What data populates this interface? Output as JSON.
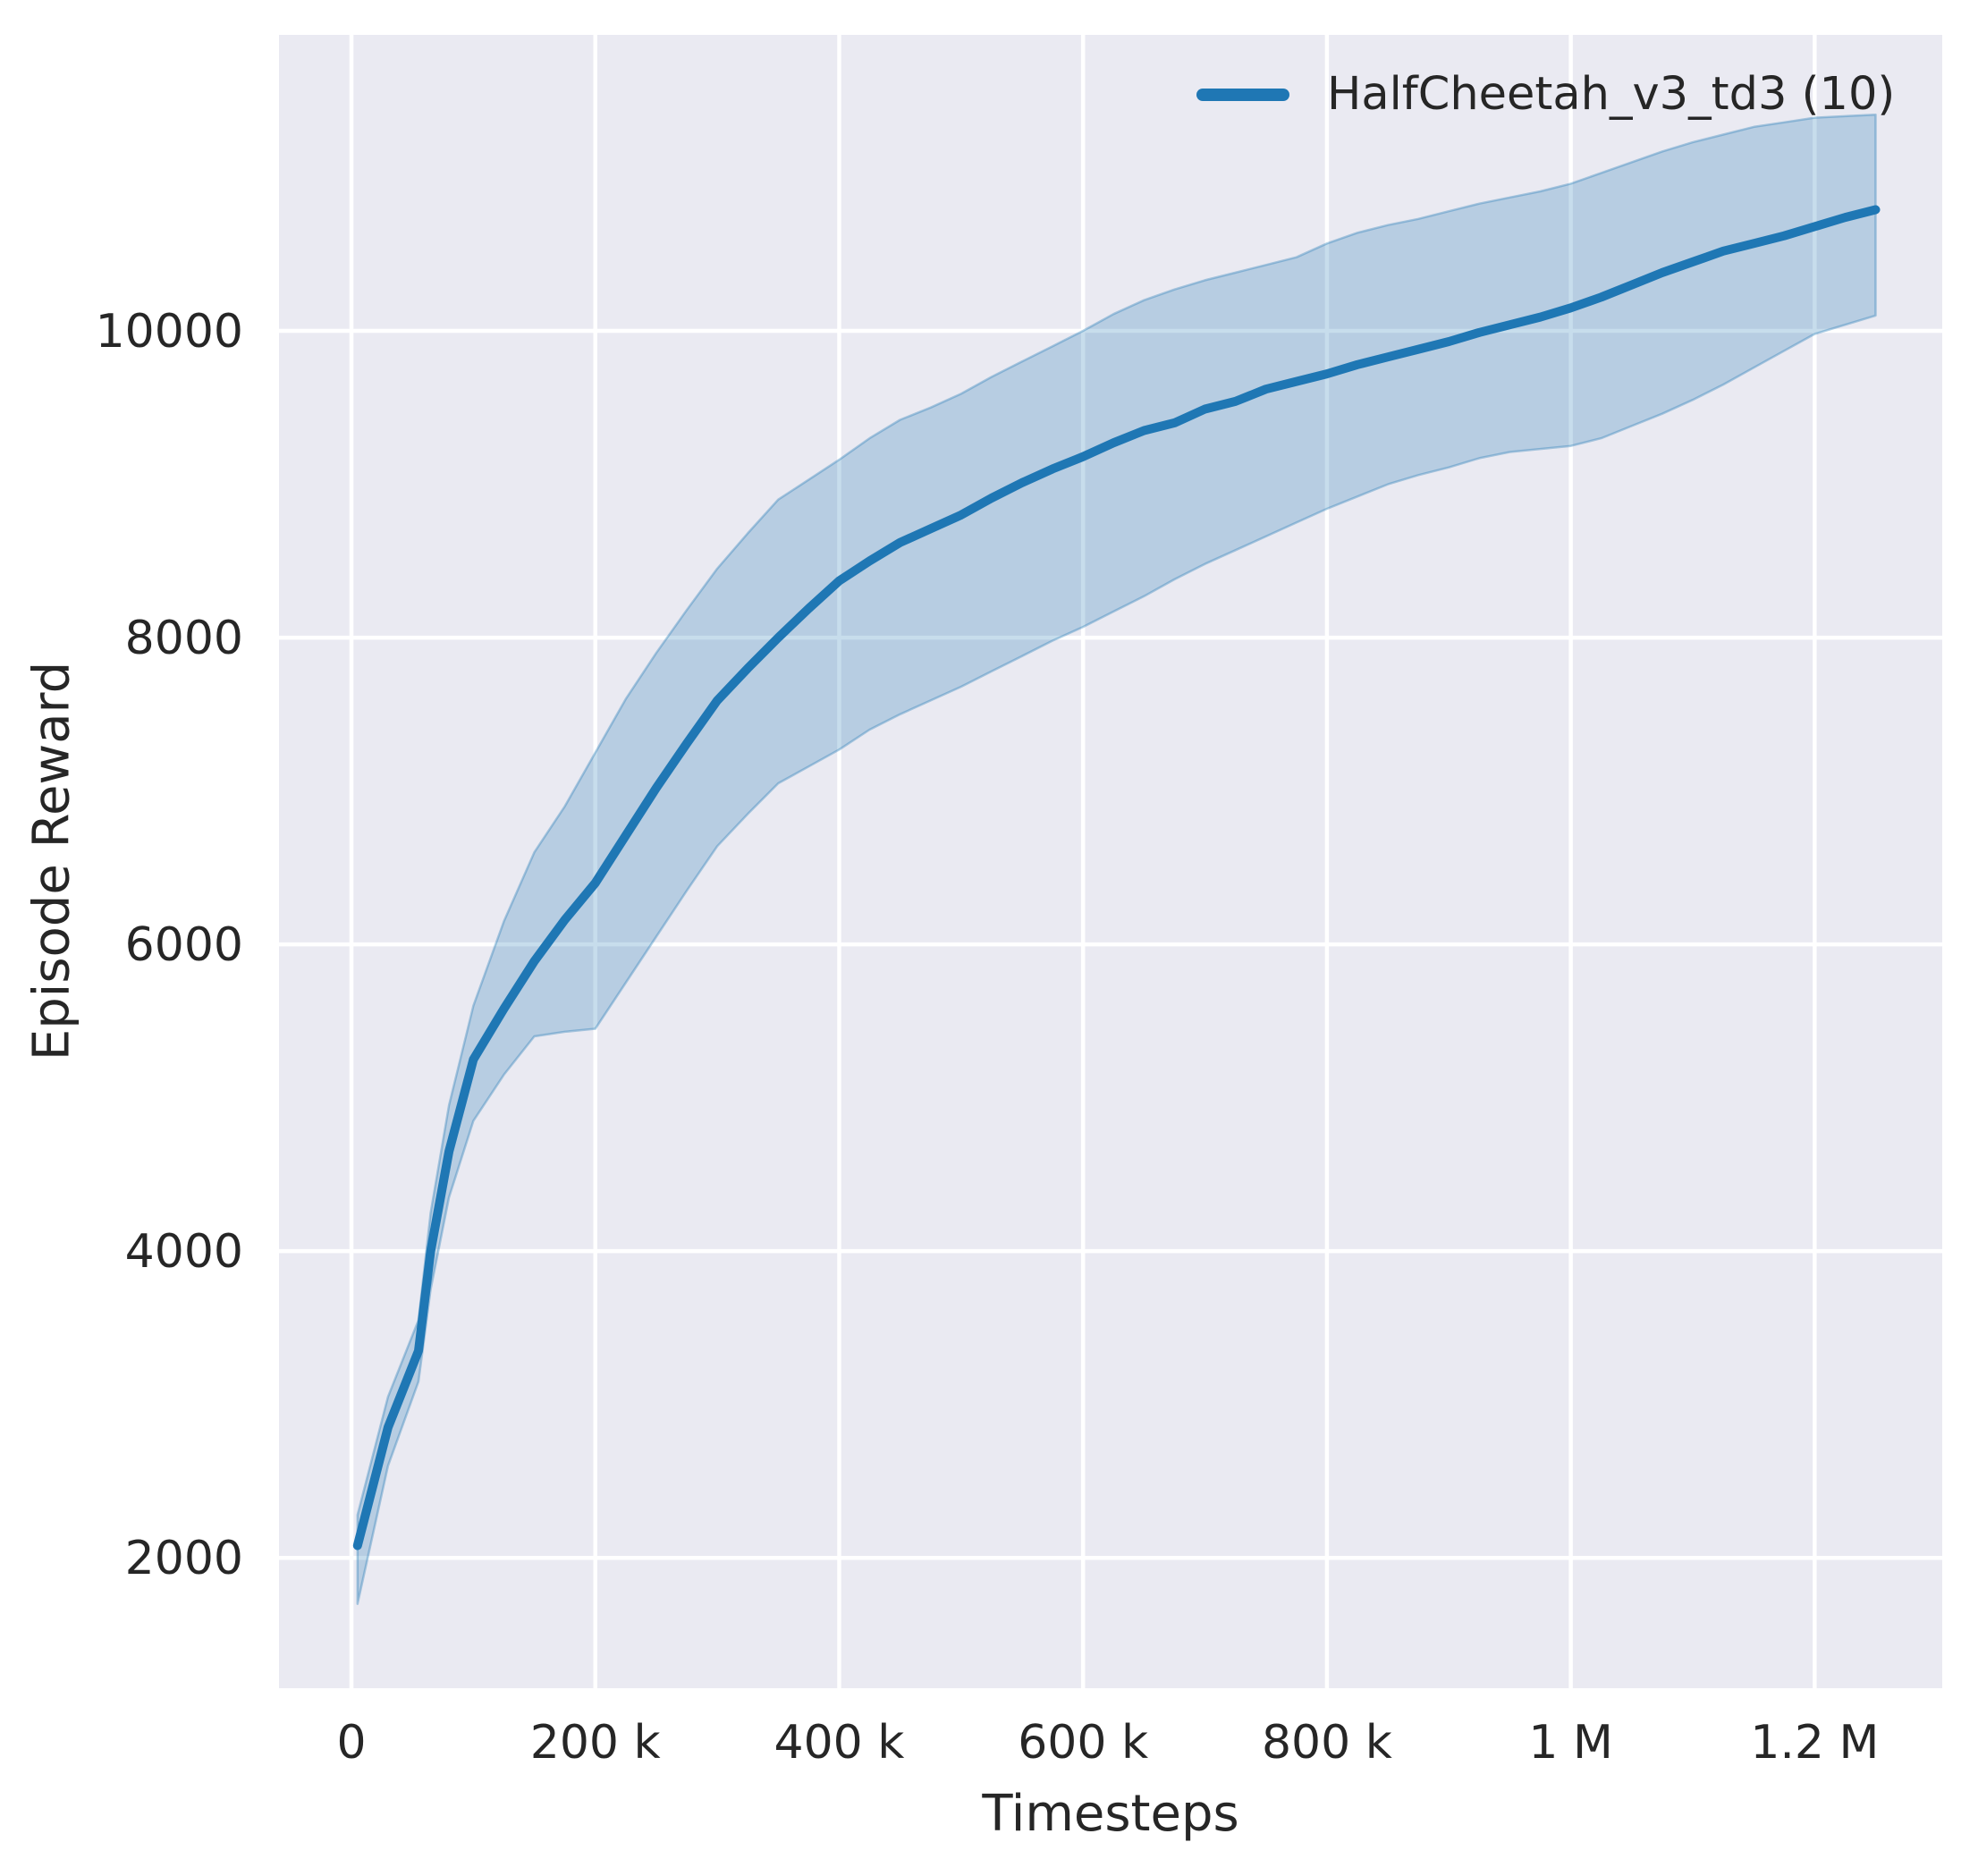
{
  "chart_data": {
    "type": "line",
    "title": "",
    "xlabel": "Timesteps",
    "ylabel": "Episode Reward",
    "grid": true,
    "legend_position": "upper right",
    "plot_bg_color": "#eaeaf2",
    "grid_color": "#ffffff",
    "text_color": "#262626",
    "xlim": [
      -59400,
      1304600
    ],
    "ylim": [
      1150,
      11930
    ],
    "x_ticks": [
      {
        "value": 0,
        "label": "0"
      },
      {
        "value": 200000,
        "label": "200 k"
      },
      {
        "value": 400000,
        "label": "400 k"
      },
      {
        "value": 600000,
        "label": "600 k"
      },
      {
        "value": 800000,
        "label": "800 k"
      },
      {
        "value": 1000000,
        "label": "1 M"
      },
      {
        "value": 1200000,
        "label": "1.2 M"
      }
    ],
    "y_ticks": [
      {
        "value": 2000,
        "label": "2000"
      },
      {
        "value": 4000,
        "label": "4000"
      },
      {
        "value": 6000,
        "label": "6000"
      },
      {
        "value": 8000,
        "label": "8000"
      },
      {
        "value": 10000,
        "label": "10000"
      }
    ],
    "legend": [
      {
        "label": "HalfCheetah_v3_td3 (10)",
        "color": "#1f77b4"
      }
    ],
    "series": [
      {
        "name": "HalfCheetah_v3_td3 (10)",
        "color": "#1f77b4",
        "band_alpha": 0.25,
        "x": [
          5000,
          30000,
          55000,
          65000,
          80000,
          100000,
          125000,
          150000,
          175000,
          200000,
          225000,
          250000,
          275000,
          300000,
          325000,
          350000,
          375000,
          400000,
          425000,
          450000,
          475000,
          500000,
          525000,
          550000,
          575000,
          600000,
          625000,
          650000,
          675000,
          700000,
          725000,
          750000,
          775000,
          800000,
          825000,
          850000,
          875000,
          900000,
          925000,
          950000,
          975000,
          1000000,
          1025000,
          1050000,
          1075000,
          1100000,
          1125000,
          1150000,
          1175000,
          1200000,
          1225000,
          1250000
        ],
        "mean": [
          2080,
          2850,
          3350,
          4000,
          4650,
          5250,
          5580,
          5890,
          6160,
          6400,
          6710,
          7020,
          7310,
          7590,
          7800,
          8000,
          8190,
          8370,
          8500,
          8620,
          8710,
          8800,
          8910,
          9010,
          9100,
          9180,
          9270,
          9350,
          9400,
          9490,
          9540,
          9620,
          9670,
          9720,
          9780,
          9830,
          9880,
          9930,
          9990,
          10040,
          10090,
          10150,
          10220,
          10300,
          10380,
          10450,
          10520,
          10570,
          10620,
          10680,
          10740,
          10790
        ],
        "lower": [
          1700,
          2600,
          3150,
          3750,
          4350,
          4850,
          5150,
          5400,
          5430,
          5450,
          5750,
          6050,
          6350,
          6640,
          6850,
          7050,
          7160,
          7270,
          7400,
          7500,
          7590,
          7680,
          7780,
          7880,
          7980,
          8070,
          8170,
          8270,
          8380,
          8480,
          8570,
          8660,
          8750,
          8840,
          8920,
          9000,
          9060,
          9110,
          9170,
          9210,
          9230,
          9250,
          9300,
          9380,
          9460,
          9550,
          9650,
          9760,
          9870,
          9980,
          10040,
          10100
        ],
        "upper": [
          2280,
          3050,
          3550,
          4250,
          4950,
          5600,
          6150,
          6600,
          6900,
          7250,
          7600,
          7900,
          8180,
          8450,
          8680,
          8900,
          9030,
          9160,
          9300,
          9420,
          9500,
          9590,
          9700,
          9800,
          9900,
          10000,
          10110,
          10200,
          10270,
          10330,
          10380,
          10430,
          10480,
          10570,
          10640,
          10690,
          10730,
          10780,
          10830,
          10870,
          10910,
          10960,
          11030,
          11100,
          11170,
          11230,
          11280,
          11330,
          11360,
          11390,
          11400,
          11410
        ]
      }
    ]
  }
}
